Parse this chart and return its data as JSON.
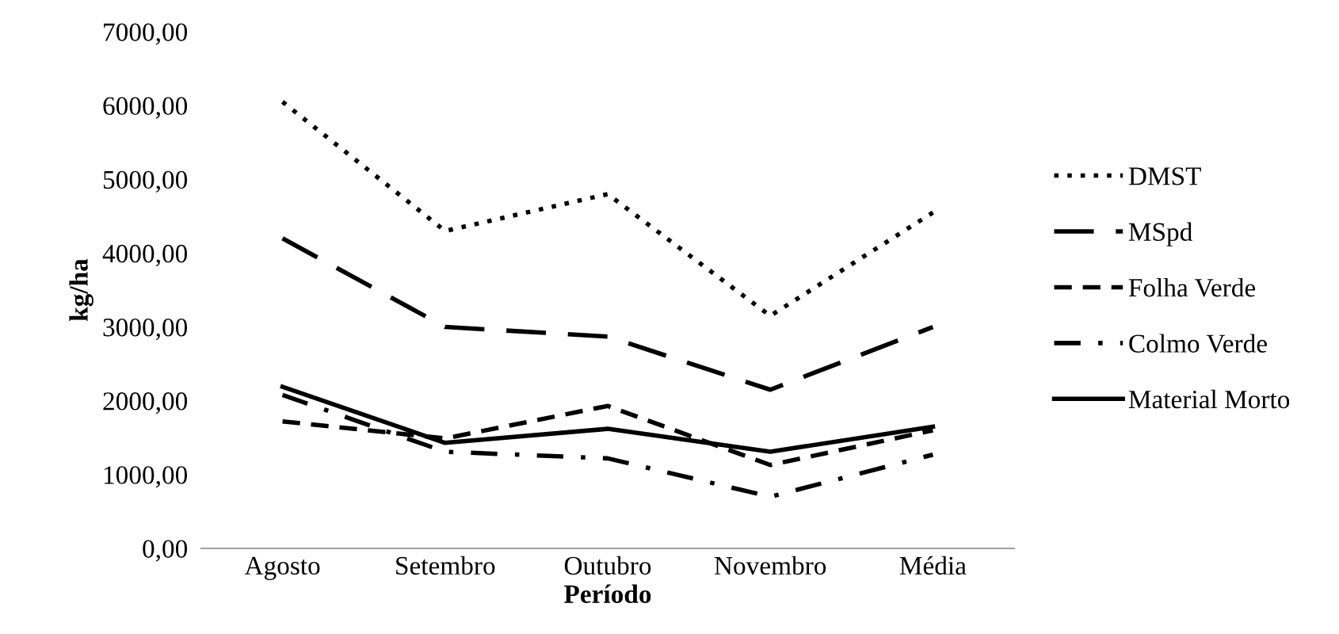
{
  "chart_data": {
    "type": "line",
    "xlabel": "Período",
    "ylabel": "kg/ha",
    "categories": [
      "Agosto",
      "Setembro",
      "Outubro",
      "Novembro",
      "Média"
    ],
    "series": [
      {
        "name": "DMST",
        "color": "#000000",
        "line_style": "dotted",
        "values": [
          6050,
          4300,
          4800,
          3150,
          4550
        ]
      },
      {
        "name": "MSpd",
        "color": "#000000",
        "line_style": "longdash",
        "values": [
          4200,
          3000,
          2870,
          2150,
          3000
        ]
      },
      {
        "name": "Folha Verde",
        "color": "#000000",
        "line_style": "dashed",
        "values": [
          1720,
          1490,
          1930,
          1130,
          1600
        ]
      },
      {
        "name": "Colmo Verde",
        "color": "#000000",
        "line_style": "dashdot",
        "values": [
          2080,
          1310,
          1220,
          700,
          1270
        ]
      },
      {
        "name": "Material Morto",
        "color": "#000000",
        "line_style": "solid",
        "values": [
          2190,
          1430,
          1620,
          1310,
          1650
        ]
      }
    ],
    "ylim": [
      0,
      7000
    ],
    "yticks": [
      {
        "value": 0,
        "label": "0,00"
      },
      {
        "value": 1000,
        "label": "1000,00"
      },
      {
        "value": 2000,
        "label": "2000,00"
      },
      {
        "value": 3000,
        "label": "3000,00"
      },
      {
        "value": 4000,
        "label": "4000,00"
      },
      {
        "value": 5000,
        "label": "5000,00"
      },
      {
        "value": 6000,
        "label": "6000,00"
      },
      {
        "value": 7000,
        "label": "7000,00"
      }
    ],
    "grid": false,
    "legend": "right",
    "marker": "none"
  }
}
